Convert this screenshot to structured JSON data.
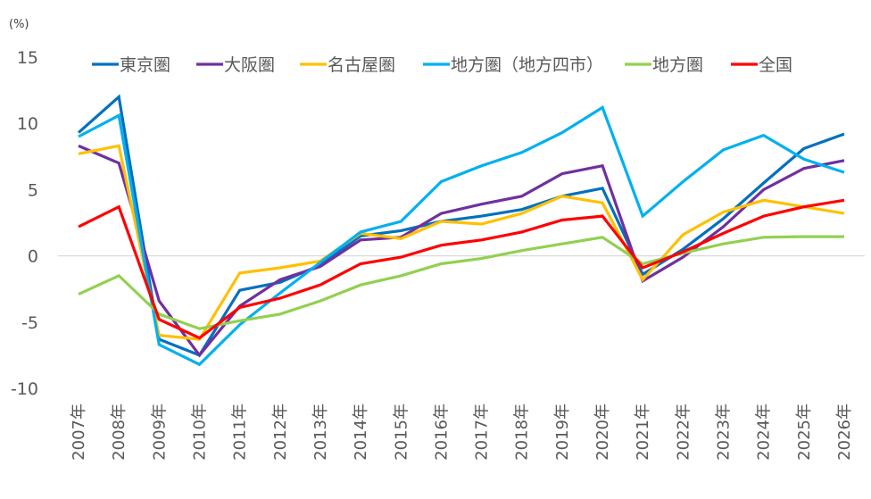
{
  "chart_data": {
    "type": "line",
    "title": "",
    "ylabel": "(%)",
    "xlabel": "",
    "ylim": [
      -10,
      15
    ],
    "yticks": [
      15,
      10,
      5,
      0,
      -5,
      -10
    ],
    "grid": "zero-line-only",
    "legend_position": "top",
    "categories": [
      "2007年",
      "2008年",
      "2009年",
      "2010年",
      "2011年",
      "2012年",
      "2013年",
      "2014年",
      "2015年",
      "2016年",
      "2017年",
      "2018年",
      "2019年",
      "2020年",
      "2021年",
      "2022年",
      "2023年",
      "2024年",
      "2025年",
      "2026年"
    ],
    "series": [
      {
        "name": "東京圏",
        "color": "#0070C0",
        "values": [
          9.3,
          12.0,
          -6.3,
          -7.5,
          -2.6,
          -2.0,
          -0.7,
          1.5,
          1.9,
          2.6,
          3.0,
          3.5,
          4.5,
          5.1,
          -1.4,
          0.5,
          2.8,
          5.5,
          8.1,
          9.2
        ]
      },
      {
        "name": "大阪圏",
        "color": "#7030A0",
        "values": [
          8.3,
          7.0,
          -3.4,
          -7.5,
          -3.8,
          -1.8,
          -0.8,
          1.2,
          1.4,
          3.2,
          3.9,
          4.5,
          6.2,
          6.8,
          -1.9,
          -0.1,
          2.2,
          5.0,
          6.6,
          7.2
        ]
      },
      {
        "name": "名古屋圏",
        "color": "#FFC000",
        "values": [
          7.7,
          8.3,
          -6.0,
          -6.3,
          -1.3,
          -0.9,
          -0.4,
          1.7,
          1.3,
          2.6,
          2.4,
          3.2,
          4.5,
          4.0,
          -1.8,
          1.6,
          3.3,
          4.2,
          3.7,
          3.2
        ]
      },
      {
        "name": "地方圏（地方四市）",
        "color": "#00B0F0",
        "values": [
          9.0,
          10.6,
          -6.7,
          -8.2,
          -5.2,
          -2.8,
          -0.5,
          1.8,
          2.6,
          5.6,
          6.8,
          7.8,
          9.3,
          11.2,
          3.0,
          5.6,
          8.0,
          9.1,
          7.3,
          6.3
        ]
      },
      {
        "name": "地方圏",
        "color": "#92D050",
        "values": [
          -2.9,
          -1.5,
          -4.4,
          -5.5,
          -4.9,
          -4.4,
          -3.4,
          -2.2,
          -1.5,
          -0.6,
          -0.2,
          0.4,
          0.9,
          1.4,
          -0.6,
          0.2,
          0.9,
          1.4,
          1.45,
          1.45
        ]
      },
      {
        "name": "全国",
        "color": "#FF0000",
        "values": [
          2.2,
          3.7,
          -4.8,
          -6.2,
          -3.9,
          -3.2,
          -2.2,
          -0.6,
          -0.1,
          0.8,
          1.2,
          1.8,
          2.7,
          3.0,
          -0.9,
          0.3,
          1.7,
          3.0,
          3.7,
          4.2
        ]
      }
    ]
  }
}
